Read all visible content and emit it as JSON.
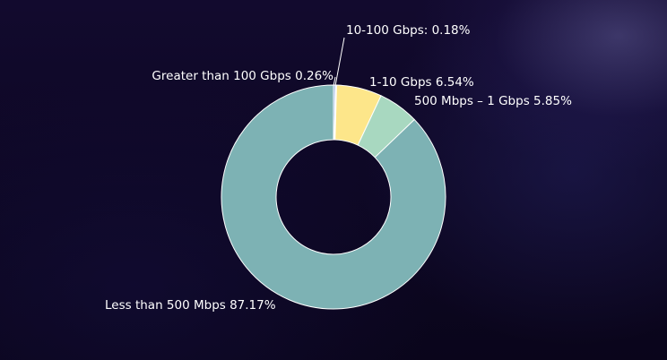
{
  "chart_data": {
    "type": "pie",
    "donut": true,
    "title": "",
    "series": [
      {
        "slices": [
          {
            "label": "Less than 500 Mbps",
            "value": 87.17,
            "display": "Less than 500 Mbps 87.17%",
            "color": "#7db2b4"
          },
          {
            "label": "Greater than 100 Gbps",
            "value": 0.26,
            "display": "Greater than 100 Gbps 0.26%",
            "color": "#88a8e0"
          },
          {
            "label": "10-100 Gbps",
            "value": 0.18,
            "display": "10-100 Gbps: 0.18%",
            "color": "#f2f2f2"
          },
          {
            "label": "1-10 Gbps",
            "value": 6.54,
            "display": "1-10 Gbps 6.54%",
            "color": "#fde68a"
          },
          {
            "label": "500 Mbps – 1 Gbps",
            "value": 5.85,
            "display": "500 Mbps – 1 Gbps 5.85%",
            "color": "#a8d8c0"
          }
        ]
      }
    ],
    "legend": "none",
    "grid": false
  }
}
